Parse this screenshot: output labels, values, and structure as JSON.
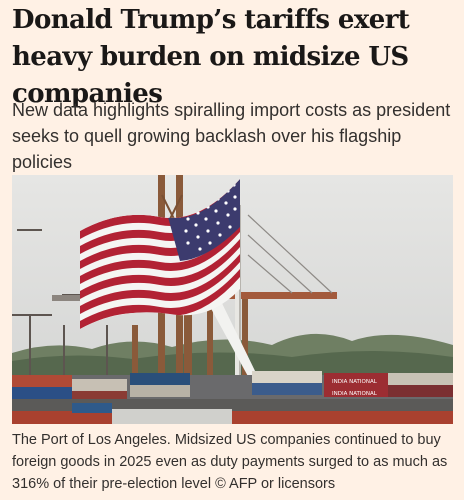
{
  "article": {
    "headline": "Donald Trump’s tariffs exert heavy burden on midsize US companies",
    "standfirst": "New data highlights spiralling import costs as president seeks to quell growing backlash over his flagship policies",
    "image": {
      "description": "US flag flying in front of cranes and stacked shipping containers at the Port of Los Angeles",
      "container_text": [
        "INDIA NATIONAL",
        "INDIA NATIONAL"
      ]
    },
    "caption": "The Port of Los Angeles. Midsized US companies continued to buy foreign goods in 2025 even as duty payments surged to as much as 316% of their pre-election level © AFP or licensors"
  },
  "colors": {
    "background": "#fff1e5",
    "headline": "#1a1817",
    "body_text": "#33302e",
    "flag_red": "#b22234",
    "flag_blue": "#3c3b6e"
  }
}
